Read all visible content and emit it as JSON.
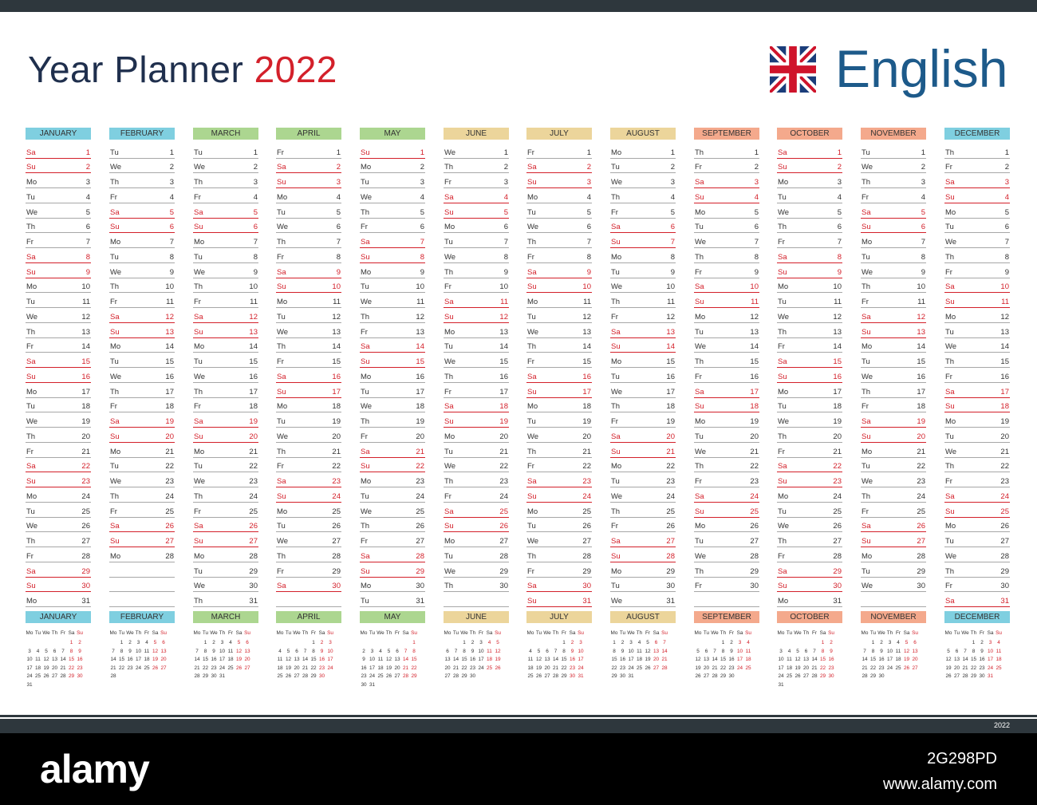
{
  "header": {
    "title": "Year Planner",
    "year": "2022",
    "language": "English"
  },
  "footer": {
    "year": "2022"
  },
  "watermark": {
    "brand": "alamy",
    "image_id": "2G298PD",
    "url": "www.alamy.com"
  },
  "months": [
    {
      "name": "JANUARY",
      "color": "#7fcfe0",
      "start": 5,
      "days": 31
    },
    {
      "name": "FEBRUARY",
      "color": "#7fcfe0",
      "start": 1,
      "days": 28
    },
    {
      "name": "MARCH",
      "color": "#acd690",
      "start": 1,
      "days": 31
    },
    {
      "name": "APRIL",
      "color": "#acd690",
      "start": 4,
      "days": 30
    },
    {
      "name": "MAY",
      "color": "#acd690",
      "start": 6,
      "days": 31
    },
    {
      "name": "JUNE",
      "color": "#ecd59b",
      "start": 2,
      "days": 30
    },
    {
      "name": "JULY",
      "color": "#ecd59b",
      "start": 4,
      "days": 31
    },
    {
      "name": "AUGUST",
      "color": "#ecd59b",
      "start": 0,
      "days": 31
    },
    {
      "name": "SEPTEMBER",
      "color": "#f4a98c",
      "start": 3,
      "days": 30
    },
    {
      "name": "OCTOBER",
      "color": "#f4a98c",
      "start": 5,
      "days": 31
    },
    {
      "name": "NOVEMBER",
      "color": "#f4a98c",
      "start": 1,
      "days": 30
    },
    {
      "name": "DECEMBER",
      "color": "#7fcfe0",
      "start": 3,
      "days": 31
    }
  ],
  "weekday_abbr": [
    "Mo",
    "Tu",
    "We",
    "Th",
    "Fr",
    "Sa",
    "Su"
  ],
  "colors": {
    "weekend": "#d3202a",
    "title": "#1f2f4d",
    "language": "#1d5a8a",
    "bar": "#2e373d"
  }
}
